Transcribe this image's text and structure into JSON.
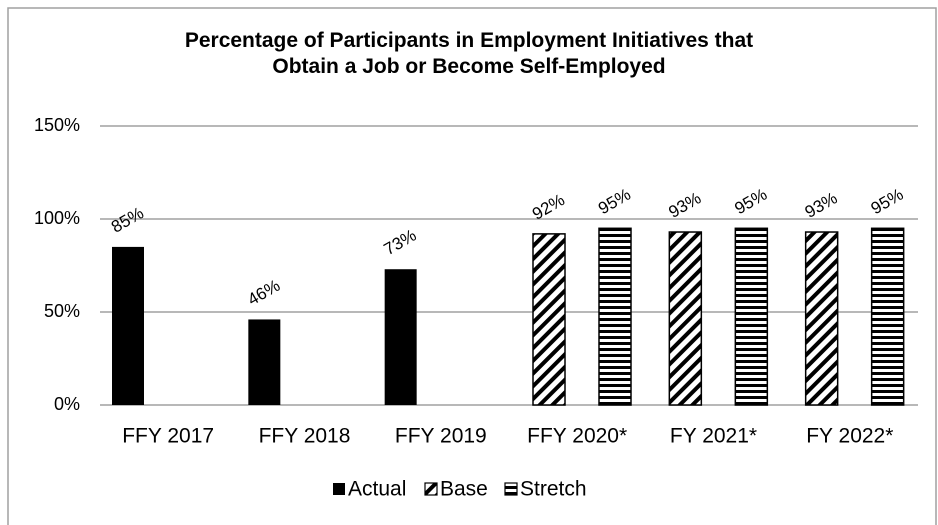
{
  "chart_data": {
    "type": "bar",
    "title": "Percentage of Participants in Employment Initiatives that\nObtain a Job or Become Self-Employed",
    "categories": [
      "FFY 2017",
      "FFY 2018",
      "FFY 2019",
      "FFY 2020*",
      "FY 2021*",
      "FY 2022*"
    ],
    "series": [
      {
        "name": "Actual",
        "color": "#000000",
        "pattern": "solid",
        "values": [
          85,
          46,
          73,
          null,
          null,
          null
        ],
        "value_labels": [
          "85%",
          "46%",
          "73%",
          null,
          null,
          null
        ]
      },
      {
        "name": "Base",
        "color": "#000000",
        "pattern": "diagonal",
        "values": [
          null,
          null,
          null,
          92,
          93,
          93
        ],
        "value_labels": [
          null,
          null,
          null,
          "92%",
          "93%",
          "93%"
        ]
      },
      {
        "name": "Stretch",
        "color": "#000000",
        "pattern": "horizontal",
        "values": [
          null,
          null,
          null,
          95,
          95,
          95
        ],
        "value_labels": [
          null,
          null,
          null,
          "95%",
          "95%",
          "95%"
        ]
      }
    ],
    "ylim": [
      0,
      150
    ],
    "yticks": [
      {
        "value": 0,
        "label": "0%"
      },
      {
        "value": 50,
        "label": "50%"
      },
      {
        "value": 100,
        "label": "100%"
      },
      {
        "value": 150,
        "label": "150%"
      }
    ],
    "grid": true,
    "legend": "bottom"
  }
}
